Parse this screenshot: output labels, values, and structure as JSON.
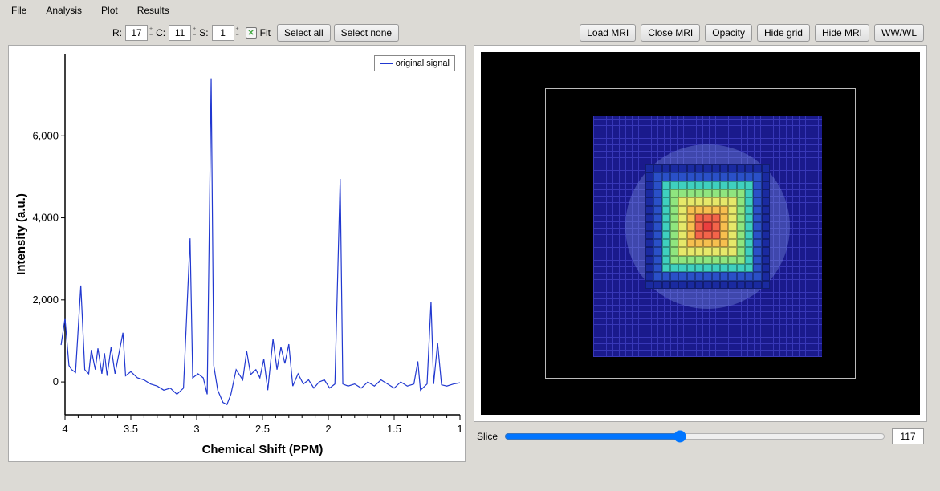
{
  "menu": {
    "items": [
      "File",
      "Analysis",
      "Plot",
      "Results"
    ]
  },
  "toolbar": {
    "r_label": "R:",
    "r_value": "17",
    "c_label": "C:",
    "c_value": "11",
    "s_label": "S:",
    "s_value": "1",
    "fit_label": "Fit",
    "fit_checked": true,
    "select_all": "Select all",
    "select_none": "Select none",
    "load_mri": "Load MRI",
    "close_mri": "Close MRI",
    "opacity": "Opacity",
    "hide_grid": "Hide grid",
    "hide_mri": "Hide MRI",
    "ww_wl": "WW/WL"
  },
  "spectrum": {
    "xlabel": "Chemical Shift (PPM)",
    "ylabel": "Intensity (a.u.)",
    "legend": "original signal",
    "line_color": "#2138d0",
    "xlim": [
      4,
      1
    ],
    "xticks": [
      4,
      3.5,
      3,
      2.5,
      2,
      1.5,
      1
    ],
    "ylim": [
      -800,
      8000
    ],
    "yticks": [
      0,
      2000,
      4000,
      6000
    ],
    "ytick_labels": [
      "0",
      "2,000",
      "4,000",
      "6,000"
    ],
    "data": [
      [
        4.03,
        900
      ],
      [
        4.0,
        1550
      ],
      [
        3.97,
        400
      ],
      [
        3.95,
        300
      ],
      [
        3.92,
        230
      ],
      [
        3.88,
        2350
      ],
      [
        3.85,
        300
      ],
      [
        3.82,
        200
      ],
      [
        3.8,
        780
      ],
      [
        3.77,
        300
      ],
      [
        3.75,
        820
      ],
      [
        3.72,
        200
      ],
      [
        3.7,
        700
      ],
      [
        3.68,
        150
      ],
      [
        3.65,
        850
      ],
      [
        3.62,
        200
      ],
      [
        3.56,
        1200
      ],
      [
        3.54,
        150
      ],
      [
        3.5,
        250
      ],
      [
        3.45,
        100
      ],
      [
        3.4,
        50
      ],
      [
        3.35,
        -50
      ],
      [
        3.3,
        -100
      ],
      [
        3.25,
        -200
      ],
      [
        3.2,
        -150
      ],
      [
        3.15,
        -300
      ],
      [
        3.1,
        -150
      ],
      [
        3.05,
        3500
      ],
      [
        3.03,
        100
      ],
      [
        2.99,
        200
      ],
      [
        2.95,
        100
      ],
      [
        2.92,
        -300
      ],
      [
        2.89,
        7400
      ],
      [
        2.87,
        400
      ],
      [
        2.84,
        -200
      ],
      [
        2.8,
        -500
      ],
      [
        2.77,
        -550
      ],
      [
        2.74,
        -300
      ],
      [
        2.7,
        300
      ],
      [
        2.65,
        50
      ],
      [
        2.62,
        750
      ],
      [
        2.59,
        180
      ],
      [
        2.55,
        300
      ],
      [
        2.52,
        100
      ],
      [
        2.49,
        560
      ],
      [
        2.46,
        -200
      ],
      [
        2.42,
        1050
      ],
      [
        2.39,
        300
      ],
      [
        2.36,
        850
      ],
      [
        2.33,
        450
      ],
      [
        2.3,
        920
      ],
      [
        2.27,
        -100
      ],
      [
        2.23,
        200
      ],
      [
        2.19,
        -50
      ],
      [
        2.15,
        50
      ],
      [
        2.11,
        -150
      ],
      [
        2.07,
        0
      ],
      [
        2.03,
        50
      ],
      [
        1.99,
        -150
      ],
      [
        1.95,
        -50
      ],
      [
        1.91,
        4950
      ],
      [
        1.89,
        -50
      ],
      [
        1.85,
        -100
      ],
      [
        1.8,
        -50
      ],
      [
        1.75,
        -150
      ],
      [
        1.7,
        0
      ],
      [
        1.65,
        -100
      ],
      [
        1.6,
        50
      ],
      [
        1.55,
        -50
      ],
      [
        1.5,
        -150
      ],
      [
        1.45,
        0
      ],
      [
        1.4,
        -100
      ],
      [
        1.35,
        -50
      ],
      [
        1.32,
        500
      ],
      [
        1.3,
        -200
      ],
      [
        1.25,
        -50
      ],
      [
        1.22,
        1950
      ],
      [
        1.2,
        -50
      ],
      [
        1.17,
        950
      ],
      [
        1.14,
        -70
      ],
      [
        1.1,
        -100
      ],
      [
        1.05,
        -50
      ],
      [
        1.0,
        -20
      ]
    ]
  },
  "mri": {
    "heatmap_palette": [
      "#1a2aa0",
      "#2a50c8",
      "#2e9ac8",
      "#3fd0bf",
      "#8fe57f",
      "#e6e86a",
      "#f7bf4f",
      "#f78f4f",
      "#f3644a",
      "#ea3f3f"
    ],
    "heatmap_n": 15
  },
  "slice": {
    "label": "Slice",
    "value": "117",
    "min": 0,
    "max": 255
  }
}
